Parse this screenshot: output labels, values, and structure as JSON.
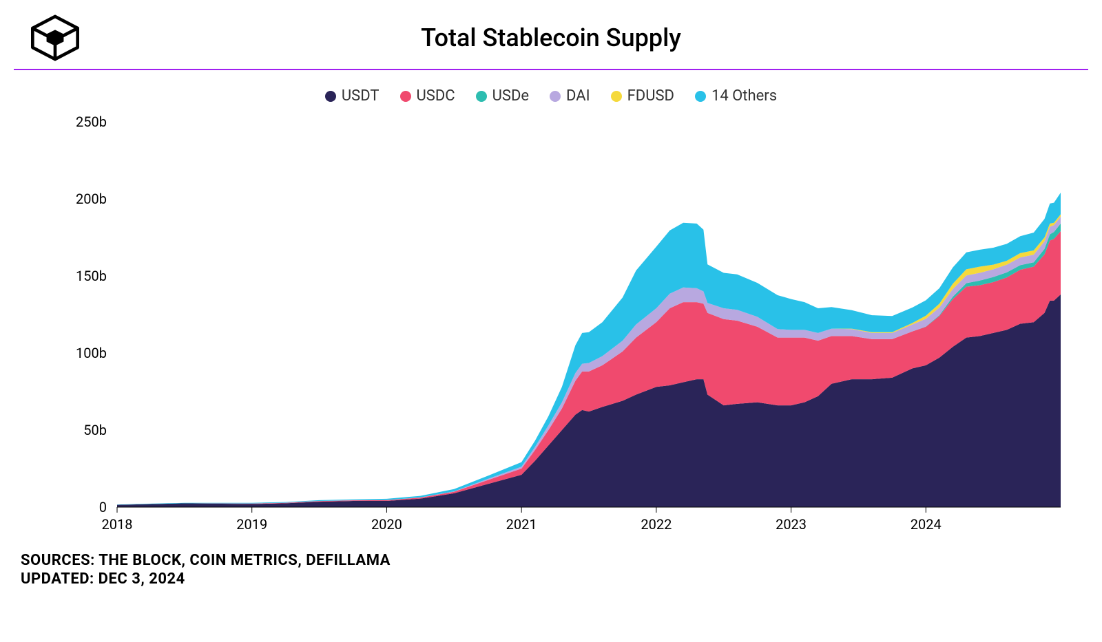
{
  "title": "Total Stablecoin Supply",
  "divider_color": "#a020f0",
  "legend": [
    {
      "label": "USDT",
      "color": "#2a2458"
    },
    {
      "label": "USDC",
      "color": "#f04a6e"
    },
    {
      "label": "USDe",
      "color": "#2dbdb0"
    },
    {
      "label": "DAI",
      "color": "#b8a8e0"
    },
    {
      "label": "FDUSD",
      "color": "#f5d93b"
    },
    {
      "label": "14 Others",
      "color": "#29c1e8"
    }
  ],
  "chart": {
    "type": "stacked-area",
    "background_color": "#ffffff",
    "y": {
      "min": 0,
      "max": 250,
      "ticks": [
        0,
        50,
        100,
        150,
        200,
        250
      ],
      "tick_labels": [
        "0",
        "50b",
        "100b",
        "150b",
        "200b",
        "250b"
      ],
      "label_fontsize": 20,
      "label_color": "#000000"
    },
    "x": {
      "min": 2018,
      "max": 2025,
      "ticks": [
        2018,
        2019,
        2020,
        2021,
        2022,
        2023,
        2024
      ],
      "tick_labels": [
        "2018",
        "2019",
        "2020",
        "2021",
        "2022",
        "2023",
        "2024"
      ],
      "label_fontsize": 20,
      "label_color": "#000000"
    },
    "series_order": [
      "USDT",
      "USDC",
      "USDe",
      "DAI",
      "FDUSD",
      "Others"
    ],
    "series_colors": {
      "USDT": "#2a2458",
      "USDC": "#f04a6e",
      "USDe": "#2dbdb0",
      "DAI": "#b8a8e0",
      "FDUSD": "#f5d93b",
      "Others": "#29c1e8"
    },
    "data_points": [
      {
        "x": 2018.0,
        "USDT": 1.5,
        "USDC": 0,
        "USDe": 0,
        "DAI": 0,
        "FDUSD": 0,
        "Others": 0.2
      },
      {
        "x": 2018.5,
        "USDT": 2.5,
        "USDC": 0,
        "USDe": 0,
        "DAI": 0,
        "FDUSD": 0,
        "Others": 0.3
      },
      {
        "x": 2019.0,
        "USDT": 2.0,
        "USDC": 0.3,
        "USDe": 0,
        "DAI": 0.1,
        "FDUSD": 0,
        "Others": 0.4
      },
      {
        "x": 2019.25,
        "USDT": 2.5,
        "USDC": 0.3,
        "USDe": 0,
        "DAI": 0.1,
        "FDUSD": 0,
        "Others": 0.4
      },
      {
        "x": 2019.5,
        "USDT": 3.5,
        "USDC": 0.4,
        "USDe": 0,
        "DAI": 0.1,
        "FDUSD": 0,
        "Others": 0.5
      },
      {
        "x": 2019.75,
        "USDT": 4.0,
        "USDC": 0.4,
        "USDe": 0,
        "DAI": 0.1,
        "FDUSD": 0,
        "Others": 0.5
      },
      {
        "x": 2020.0,
        "USDT": 4.0,
        "USDC": 0.5,
        "USDe": 0,
        "DAI": 0.1,
        "FDUSD": 0,
        "Others": 0.8
      },
      {
        "x": 2020.25,
        "USDT": 5.5,
        "USDC": 0.7,
        "USDe": 0,
        "DAI": 0.1,
        "FDUSD": 0,
        "Others": 1.0
      },
      {
        "x": 2020.5,
        "USDT": 9.0,
        "USDC": 1.0,
        "USDe": 0,
        "DAI": 0.2,
        "FDUSD": 0,
        "Others": 1.5
      },
      {
        "x": 2020.75,
        "USDT": 15.0,
        "USDC": 2.5,
        "USDe": 0,
        "DAI": 0.8,
        "FDUSD": 0,
        "Others": 2.0
      },
      {
        "x": 2021.0,
        "USDT": 21.0,
        "USDC": 4.0,
        "USDe": 0,
        "DAI": 1.2,
        "FDUSD": 0,
        "Others": 3.0
      },
      {
        "x": 2021.1,
        "USDT": 30.0,
        "USDC": 7.0,
        "USDe": 0,
        "DAI": 2.0,
        "FDUSD": 0,
        "Others": 4.0
      },
      {
        "x": 2021.2,
        "USDT": 40.0,
        "USDC": 10.0,
        "USDe": 0,
        "DAI": 3.0,
        "FDUSD": 0,
        "Others": 6.0
      },
      {
        "x": 2021.3,
        "USDT": 50.0,
        "USDC": 14.0,
        "USDe": 0,
        "DAI": 4.0,
        "FDUSD": 0,
        "Others": 10.0
      },
      {
        "x": 2021.4,
        "USDT": 60.0,
        "USDC": 22.0,
        "USDe": 0,
        "DAI": 5.0,
        "FDUSD": 0,
        "Others": 18.0
      },
      {
        "x": 2021.45,
        "USDT": 63.0,
        "USDC": 25.0,
        "USDe": 0,
        "DAI": 5.0,
        "FDUSD": 0,
        "Others": 20.0
      },
      {
        "x": 2021.5,
        "USDT": 62.0,
        "USDC": 26.0,
        "USDe": 0,
        "DAI": 5.5,
        "FDUSD": 0,
        "Others": 20.0
      },
      {
        "x": 2021.6,
        "USDT": 65.0,
        "USDC": 27.0,
        "USDe": 0,
        "DAI": 6.0,
        "FDUSD": 0,
        "Others": 22.0
      },
      {
        "x": 2021.75,
        "USDT": 69.0,
        "USDC": 32.0,
        "USDe": 0,
        "DAI": 7.0,
        "FDUSD": 0,
        "Others": 28.0
      },
      {
        "x": 2021.85,
        "USDT": 73.0,
        "USDC": 37.0,
        "USDe": 0,
        "DAI": 8.5,
        "FDUSD": 0,
        "Others": 35.0
      },
      {
        "x": 2022.0,
        "USDT": 78.0,
        "USDC": 42.0,
        "USDe": 0,
        "DAI": 9.0,
        "FDUSD": 0,
        "Others": 40.0
      },
      {
        "x": 2022.1,
        "USDT": 79.0,
        "USDC": 50.0,
        "USDe": 0,
        "DAI": 9.5,
        "FDUSD": 0,
        "Others": 41.0
      },
      {
        "x": 2022.2,
        "USDT": 81.0,
        "USDC": 52.0,
        "USDe": 0,
        "DAI": 9.5,
        "FDUSD": 0,
        "Others": 42.0
      },
      {
        "x": 2022.3,
        "USDT": 83.0,
        "USDC": 50.0,
        "USDe": 0,
        "DAI": 9.0,
        "FDUSD": 0,
        "Others": 42.0
      },
      {
        "x": 2022.35,
        "USDT": 83.0,
        "USDC": 49.0,
        "USDe": 0,
        "DAI": 8.0,
        "FDUSD": 0,
        "Others": 40.0
      },
      {
        "x": 2022.38,
        "USDT": 73.0,
        "USDC": 53.0,
        "USDe": 0,
        "DAI": 6.5,
        "FDUSD": 0,
        "Others": 25.0
      },
      {
        "x": 2022.5,
        "USDT": 66.0,
        "USDC": 56.0,
        "USDe": 0,
        "DAI": 7.0,
        "FDUSD": 0,
        "Others": 23.0
      },
      {
        "x": 2022.6,
        "USDT": 67.0,
        "USDC": 54.0,
        "USDe": 0,
        "DAI": 7.0,
        "FDUSD": 0,
        "Others": 23.0
      },
      {
        "x": 2022.75,
        "USDT": 68.0,
        "USDC": 49.0,
        "USDe": 0,
        "DAI": 6.5,
        "FDUSD": 0,
        "Others": 22.0
      },
      {
        "x": 2022.9,
        "USDT": 66.0,
        "USDC": 44.0,
        "USDe": 0,
        "DAI": 5.5,
        "FDUSD": 0,
        "Others": 22.0
      },
      {
        "x": 2023.0,
        "USDT": 66.0,
        "USDC": 44.0,
        "USDe": 0,
        "DAI": 5.0,
        "FDUSD": 0,
        "Others": 20.0
      },
      {
        "x": 2023.1,
        "USDT": 68.0,
        "USDC": 42.0,
        "USDe": 0,
        "DAI": 5.0,
        "FDUSD": 0,
        "Others": 18.0
      },
      {
        "x": 2023.2,
        "USDT": 72.0,
        "USDC": 36.0,
        "USDe": 0,
        "DAI": 5.0,
        "FDUSD": 0,
        "Others": 16.0
      },
      {
        "x": 2023.3,
        "USDT": 80.0,
        "USDC": 31.0,
        "USDe": 0,
        "DAI": 4.8,
        "FDUSD": 0,
        "Others": 14.0
      },
      {
        "x": 2023.45,
        "USDT": 83.0,
        "USDC": 28.0,
        "USDe": 0,
        "DAI": 4.5,
        "FDUSD": 0.3,
        "Others": 12.0
      },
      {
        "x": 2023.6,
        "USDT": 83.0,
        "USDC": 26.0,
        "USDe": 0,
        "DAI": 4.0,
        "FDUSD": 0.5,
        "Others": 11.0
      },
      {
        "x": 2023.75,
        "USDT": 84.0,
        "USDC": 25.0,
        "USDe": 0,
        "DAI": 4.0,
        "FDUSD": 0.5,
        "Others": 10.5
      },
      {
        "x": 2023.9,
        "USDT": 90.0,
        "USDC": 24.0,
        "USDe": 0,
        "DAI": 4.5,
        "FDUSD": 1.0,
        "Others": 10.0
      },
      {
        "x": 2024.0,
        "USDT": 92.0,
        "USDC": 25.0,
        "USDe": 0.2,
        "DAI": 5.0,
        "FDUSD": 2.0,
        "Others": 10.0
      },
      {
        "x": 2024.1,
        "USDT": 97.0,
        "USDC": 27.0,
        "USDe": 0.5,
        "DAI": 5.0,
        "FDUSD": 2.5,
        "Others": 10.0
      },
      {
        "x": 2024.2,
        "USDT": 104.0,
        "USDC": 31.0,
        "USDe": 1.5,
        "DAI": 5.0,
        "FDUSD": 3.5,
        "Others": 10.5
      },
      {
        "x": 2024.3,
        "USDT": 110.0,
        "USDC": 33.0,
        "USDe": 2.3,
        "DAI": 5.0,
        "FDUSD": 4.0,
        "Others": 11.0
      },
      {
        "x": 2024.4,
        "USDT": 111.0,
        "USDC": 33.0,
        "USDe": 3.0,
        "DAI": 5.0,
        "FDUSD": 4.0,
        "Others": 11.0
      },
      {
        "x": 2024.5,
        "USDT": 113.0,
        "USDC": 33.0,
        "USDe": 3.3,
        "DAI": 5.0,
        "FDUSD": 3.0,
        "Others": 11.0
      },
      {
        "x": 2024.6,
        "USDT": 115.0,
        "USDC": 34.0,
        "USDe": 3.3,
        "DAI": 5.0,
        "FDUSD": 2.5,
        "Others": 11.0
      },
      {
        "x": 2024.7,
        "USDT": 119.0,
        "USDC": 35.0,
        "USDe": 3.0,
        "DAI": 5.0,
        "FDUSD": 2.8,
        "Others": 11.0
      },
      {
        "x": 2024.8,
        "USDT": 120.0,
        "USDC": 36.0,
        "USDe": 2.8,
        "DAI": 5.0,
        "FDUSD": 2.8,
        "Others": 11.5
      },
      {
        "x": 2024.88,
        "USDT": 126.0,
        "USDC": 38.0,
        "USDe": 3.5,
        "DAI": 5.0,
        "FDUSD": 2.5,
        "Others": 12.0
      },
      {
        "x": 2024.92,
        "USDT": 134.0,
        "USDC": 39.0,
        "USDe": 4.0,
        "DAI": 5.0,
        "FDUSD": 2.0,
        "Others": 13.0
      },
      {
        "x": 2024.95,
        "USDT": 134.0,
        "USDC": 40.0,
        "USDe": 4.5,
        "DAI": 4.5,
        "FDUSD": 1.5,
        "Others": 13.0
      },
      {
        "x": 2025.0,
        "USDT": 138.0,
        "USDC": 41.0,
        "USDe": 5.0,
        "DAI": 4.5,
        "FDUSD": 1.5,
        "Others": 14.0
      }
    ]
  },
  "footer": {
    "sources_label": "SOURCES: THE BLOCK, COIN METRICS, DEFILLAMA",
    "updated_label": "UPDATED: DEC 3, 2024"
  }
}
